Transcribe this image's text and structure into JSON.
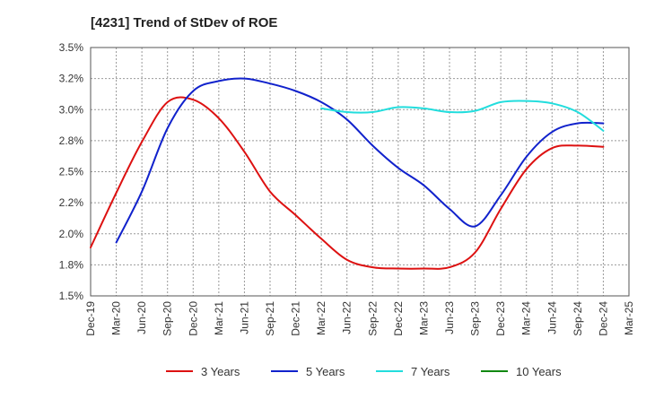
{
  "chart_data": {
    "type": "line",
    "title": "[4231]  Trend of StDev of ROE",
    "xlabel": "",
    "ylabel": "",
    "x": [
      "Dec-19",
      "Mar-20",
      "Jun-20",
      "Sep-20",
      "Dec-20",
      "Mar-21",
      "Jun-21",
      "Sep-21",
      "Dec-21",
      "Mar-22",
      "Jun-22",
      "Sep-22",
      "Dec-22",
      "Mar-23",
      "Jun-23",
      "Sep-23",
      "Dec-23",
      "Mar-24",
      "Jun-24",
      "Sep-24",
      "Dec-24",
      "Mar-25"
    ],
    "ylim": [
      1.5,
      3.5
    ],
    "yticks": [
      1.5,
      1.75,
      2.0,
      2.25,
      2.5,
      2.75,
      3.0,
      3.25,
      3.5
    ],
    "ytick_labels": [
      "1.5%",
      "1.8%",
      "2.0%",
      "2.2%",
      "2.5%",
      "2.8%",
      "3.0%",
      "3.2%",
      "3.5%"
    ],
    "grid": true,
    "legend_position": "bottom",
    "series": [
      {
        "name": "3 Years",
        "color": "#dd1111",
        "values": [
          1.89,
          2.33,
          2.74,
          3.06,
          3.08,
          2.93,
          2.66,
          2.34,
          2.15,
          1.96,
          1.79,
          1.73,
          1.72,
          1.72,
          1.73,
          1.85,
          2.2,
          2.52,
          2.69,
          2.71,
          2.7,
          null
        ]
      },
      {
        "name": "5 Years",
        "color": "#1122cc",
        "values": [
          null,
          1.93,
          2.34,
          2.85,
          3.15,
          3.23,
          3.25,
          3.21,
          3.15,
          3.06,
          2.92,
          2.71,
          2.53,
          2.39,
          2.2,
          2.06,
          2.31,
          2.62,
          2.82,
          2.89,
          2.89,
          null
        ]
      },
      {
        "name": "7 Years",
        "color": "#22dddd",
        "values": [
          null,
          null,
          null,
          null,
          null,
          null,
          null,
          null,
          null,
          3.01,
          2.98,
          2.98,
          3.02,
          3.01,
          2.98,
          2.99,
          3.06,
          3.07,
          3.05,
          2.98,
          2.83,
          null
        ]
      },
      {
        "name": "10 Years",
        "color": "#118811",
        "values": [
          null,
          null,
          null,
          null,
          null,
          null,
          null,
          null,
          null,
          null,
          null,
          null,
          null,
          null,
          null,
          null,
          null,
          null,
          null,
          null,
          null,
          null
        ]
      }
    ]
  }
}
